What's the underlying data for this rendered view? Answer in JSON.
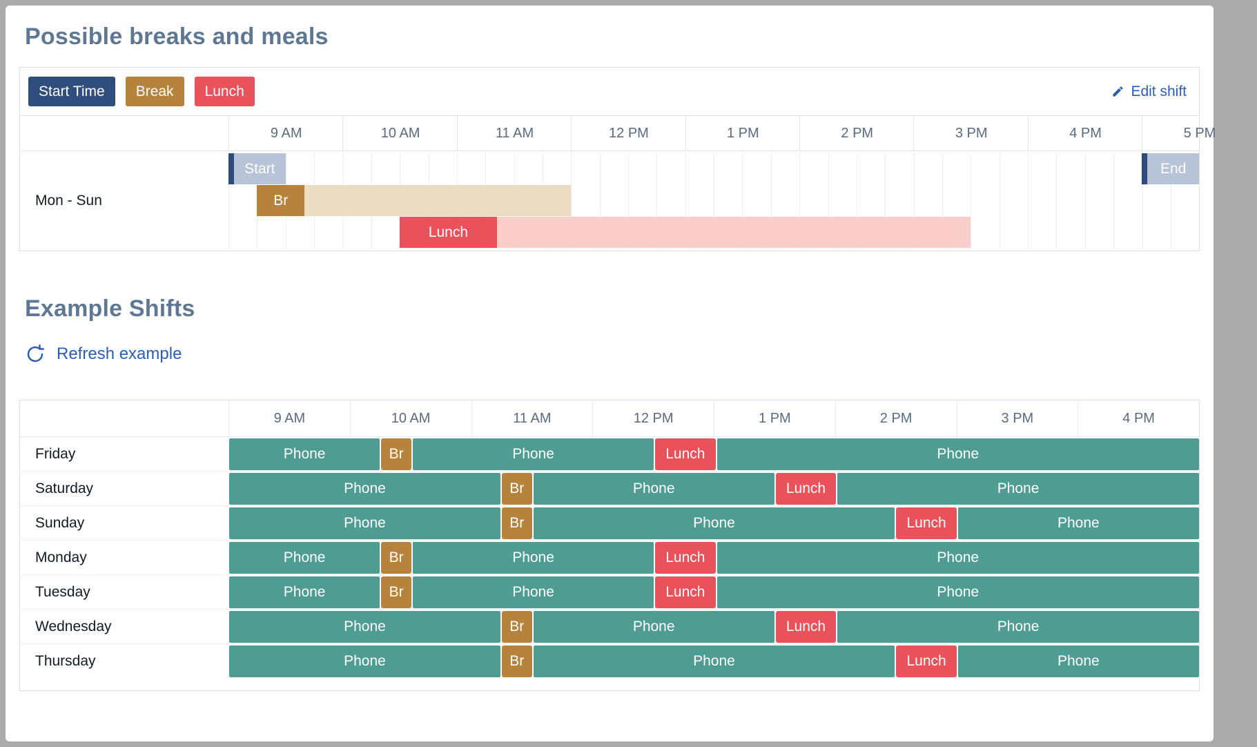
{
  "colors": {
    "teal": "#4f9c92",
    "gold": "#b5833c",
    "red": "#e9515b",
    "navy": "#2f4e7d",
    "navy_bar": "#2e4c7b",
    "start_chip": "#b7c3d6",
    "break_window": "#ebdbc0",
    "lunch_window": "#f8cdca",
    "link_blue": "#2e5cb4",
    "title_slate": "#5e7793"
  },
  "section_possible": {
    "title": "Possible breaks and meals",
    "edit_shift_label": "Edit shift",
    "legend": [
      {
        "id": "start-time",
        "label": "Start Time",
        "color": "#2f4e7d"
      },
      {
        "id": "break",
        "label": "Break",
        "color": "#b5833c"
      },
      {
        "id": "lunch",
        "label": "Lunch",
        "color": "#e9515b"
      }
    ],
    "hours": [
      "9 AM",
      "10 AM",
      "11 AM",
      "12 PM",
      "1 PM",
      "2 PM",
      "3 PM",
      "4 PM",
      "5 PM"
    ],
    "visible_hours": 8.5,
    "range_minutes": 510,
    "row_label": "Mon - Sun",
    "start_marker": {
      "label": "Start",
      "start_min": 0,
      "end_min": 30
    },
    "end_marker": {
      "label": "End",
      "start_min": 480,
      "end_min": 510
    },
    "break": {
      "label": "Br",
      "window_start_min": 15,
      "window_end_min": 180,
      "chip_duration_min": 25
    },
    "lunch": {
      "label": "Lunch",
      "window_start_min": 90,
      "window_end_min": 390,
      "chip_duration_min": 51
    }
  },
  "section_examples": {
    "title": "Example Shifts",
    "refresh_label": "Refresh example",
    "hours": [
      "9 AM",
      "10 AM",
      "11 AM",
      "12 PM",
      "1 PM",
      "2 PM",
      "3 PM",
      "4 PM"
    ],
    "range_minutes": 480,
    "days": [
      {
        "label": "Friday",
        "segments": [
          {
            "type": "phone",
            "label": "Phone",
            "start": 0,
            "end": 75
          },
          {
            "type": "break",
            "label": "Br",
            "start": 75,
            "end": 90
          },
          {
            "type": "phone",
            "label": "Phone",
            "start": 90,
            "end": 210
          },
          {
            "type": "lunch",
            "label": "Lunch",
            "start": 210,
            "end": 240
          },
          {
            "type": "phone",
            "label": "Phone",
            "start": 240,
            "end": 480
          }
        ]
      },
      {
        "label": "Saturday",
        "segments": [
          {
            "type": "phone",
            "label": "Phone",
            "start": 0,
            "end": 135
          },
          {
            "type": "break",
            "label": "Br",
            "start": 135,
            "end": 150
          },
          {
            "type": "phone",
            "label": "Phone",
            "start": 150,
            "end": 270
          },
          {
            "type": "lunch",
            "label": "Lunch",
            "start": 270,
            "end": 300
          },
          {
            "type": "phone",
            "label": "Phone",
            "start": 300,
            "end": 480
          }
        ]
      },
      {
        "label": "Sunday",
        "segments": [
          {
            "type": "phone",
            "label": "Phone",
            "start": 0,
            "end": 135
          },
          {
            "type": "break",
            "label": "Br",
            "start": 135,
            "end": 150
          },
          {
            "type": "phone",
            "label": "Phone",
            "start": 150,
            "end": 330
          },
          {
            "type": "lunch",
            "label": "Lunch",
            "start": 330,
            "end": 360
          },
          {
            "type": "phone",
            "label": "Phone",
            "start": 360,
            "end": 480
          }
        ]
      },
      {
        "label": "Monday",
        "segments": [
          {
            "type": "phone",
            "label": "Phone",
            "start": 0,
            "end": 75
          },
          {
            "type": "break",
            "label": "Br",
            "start": 75,
            "end": 90
          },
          {
            "type": "phone",
            "label": "Phone",
            "start": 90,
            "end": 210
          },
          {
            "type": "lunch",
            "label": "Lunch",
            "start": 210,
            "end": 240
          },
          {
            "type": "phone",
            "label": "Phone",
            "start": 240,
            "end": 480
          }
        ]
      },
      {
        "label": "Tuesday",
        "segments": [
          {
            "type": "phone",
            "label": "Phone",
            "start": 0,
            "end": 75
          },
          {
            "type": "break",
            "label": "Br",
            "start": 75,
            "end": 90
          },
          {
            "type": "phone",
            "label": "Phone",
            "start": 90,
            "end": 210
          },
          {
            "type": "lunch",
            "label": "Lunch",
            "start": 210,
            "end": 240
          },
          {
            "type": "phone",
            "label": "Phone",
            "start": 240,
            "end": 480
          }
        ]
      },
      {
        "label": "Wednesday",
        "segments": [
          {
            "type": "phone",
            "label": "Phone",
            "start": 0,
            "end": 135
          },
          {
            "type": "break",
            "label": "Br",
            "start": 135,
            "end": 150
          },
          {
            "type": "phone",
            "label": "Phone",
            "start": 150,
            "end": 270
          },
          {
            "type": "lunch",
            "label": "Lunch",
            "start": 270,
            "end": 300
          },
          {
            "type": "phone",
            "label": "Phone",
            "start": 300,
            "end": 480
          }
        ]
      },
      {
        "label": "Thursday",
        "segments": [
          {
            "type": "phone",
            "label": "Phone",
            "start": 0,
            "end": 135
          },
          {
            "type": "break",
            "label": "Br",
            "start": 135,
            "end": 150
          },
          {
            "type": "phone",
            "label": "Phone",
            "start": 150,
            "end": 330
          },
          {
            "type": "lunch",
            "label": "Lunch",
            "start": 330,
            "end": 360
          },
          {
            "type": "phone",
            "label": "Phone",
            "start": 360,
            "end": 480
          }
        ]
      }
    ]
  }
}
